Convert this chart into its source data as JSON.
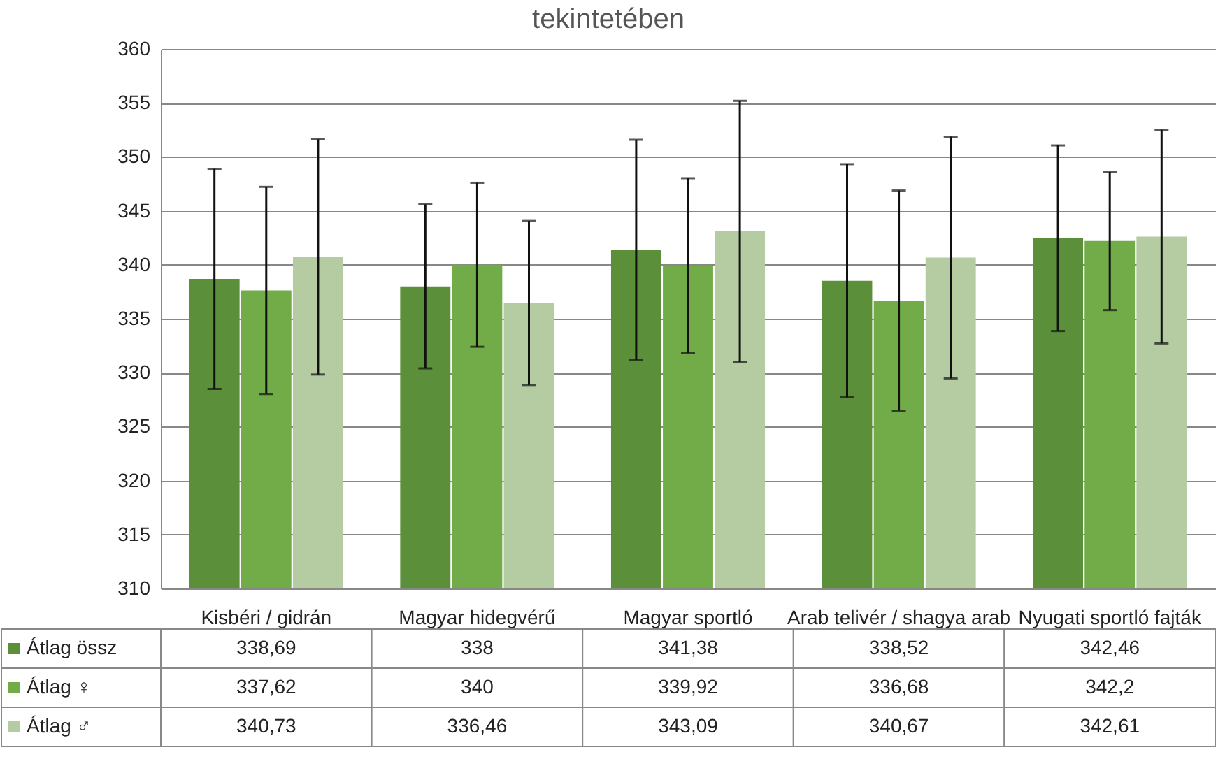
{
  "chart_data": {
    "type": "bar",
    "title": "tekintetében",
    "categories": [
      "Kisbéri / gidrán",
      "Magyar hidegvérű",
      "Magyar sportló",
      "Arab telivér / shagya arab",
      "Nyugati sportló fajták"
    ],
    "series": [
      {
        "name": "Átlag össz",
        "color": "#5b8f3a",
        "values": [
          338.69,
          338,
          341.38,
          338.52,
          342.46
        ],
        "errors": [
          10.2,
          7.6,
          10.2,
          10.8,
          8.6
        ],
        "value_labels": [
          "338,69",
          "338",
          "341,38",
          "338,52",
          "342,46"
        ]
      },
      {
        "name": "Átlag ♀",
        "color": "#72ac48",
        "values": [
          337.62,
          340,
          339.92,
          336.68,
          342.2
        ],
        "errors": [
          9.6,
          7.6,
          8.1,
          10.2,
          6.4
        ],
        "value_labels": [
          "337,62",
          "340",
          "339,92",
          "336,68",
          "342,2"
        ]
      },
      {
        "name": "Átlag ♂",
        "color": "#b5cca3",
        "values": [
          340.73,
          336.46,
          343.09,
          340.67,
          342.61
        ],
        "errors": [
          10.9,
          7.6,
          12.1,
          11.2,
          9.9
        ],
        "value_labels": [
          "340,73",
          "336,46",
          "343,09",
          "340,67",
          "342,61"
        ]
      }
    ],
    "ylim": [
      310,
      360
    ],
    "yticks": [
      310,
      315,
      320,
      325,
      330,
      335,
      340,
      345,
      350,
      355,
      360
    ],
    "grid": "y",
    "legend": "bottom left"
  }
}
